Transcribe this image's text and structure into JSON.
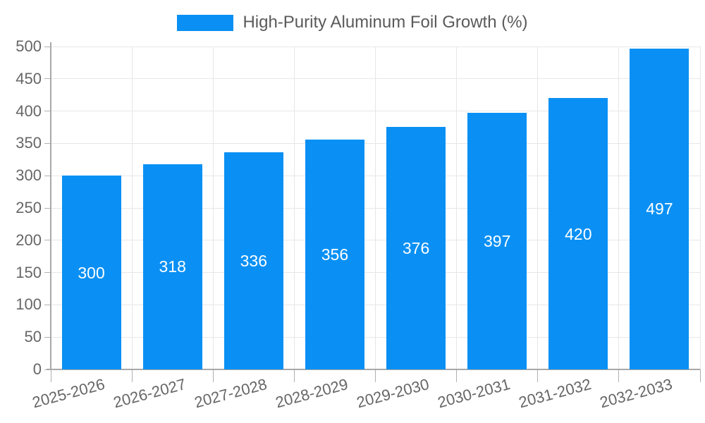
{
  "chart_data": {
    "type": "bar",
    "title": "High-Purity Aluminum Foil Growth (%)",
    "categories": [
      "2025-2026",
      "2026-2027",
      "2027-2028",
      "2028-2029",
      "2029-2030",
      "2030-2031",
      "2031-2032",
      "2032-2033"
    ],
    "values": [
      300,
      318,
      336,
      356,
      376,
      397,
      420,
      497
    ],
    "bar_labels": [
      "300",
      "318",
      "336",
      "356",
      "376",
      "397",
      "420",
      "497"
    ],
    "xlabel": "",
    "ylabel": "",
    "ylim": [
      0,
      500
    ],
    "yticks": [
      0,
      50,
      100,
      150,
      200,
      250,
      300,
      350,
      400,
      450,
      500
    ],
    "grid": true,
    "legend_position": "top",
    "colors": {
      "bar": "#0a90f4",
      "bar_label_text": "#ffffff",
      "grid_line": "#e7e7e7",
      "axis_line": "#a8a8a8",
      "tick_line": "#b0b0b0",
      "axis_text": "#666666",
      "title_text": "#5a5a5a"
    }
  }
}
